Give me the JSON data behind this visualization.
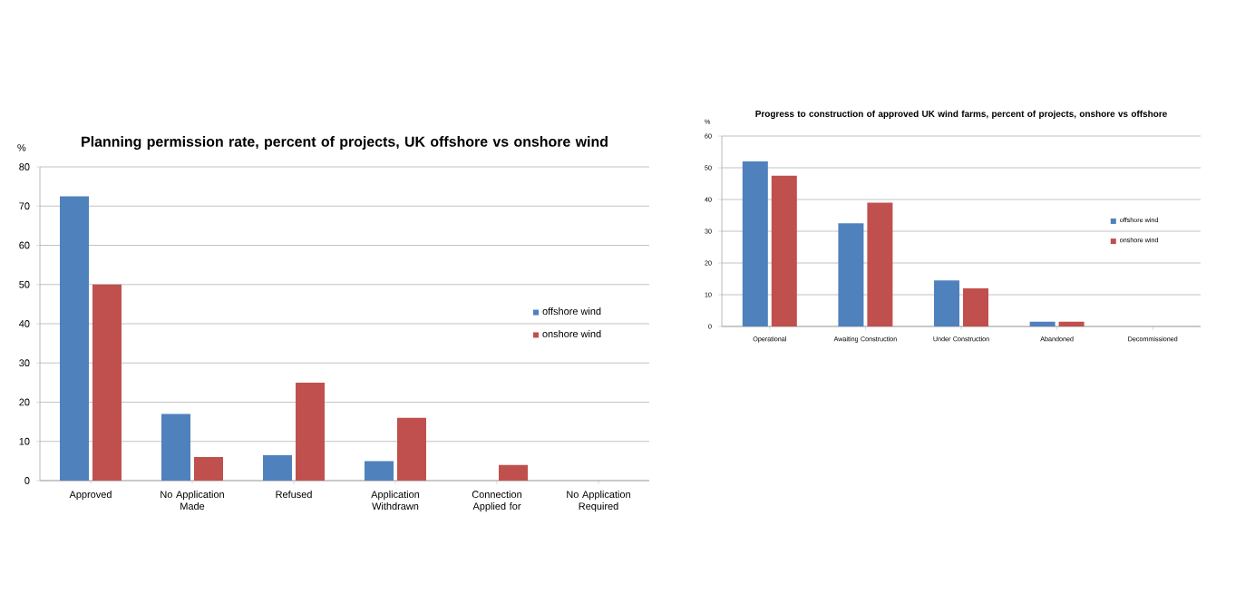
{
  "chart_data": [
    {
      "type": "bar",
      "title": "Planning permission rate, percent of projects, UK offshore vs onshore wind",
      "ylabel": "%",
      "categories": [
        "Approved",
        "No Application Made",
        "Refused",
        "Application Withdrawn",
        "Connection Applied for",
        "No Application Required"
      ],
      "series": [
        {
          "name": "offshore wind",
          "color": "#4f81bd",
          "values": [
            72.5,
            17,
            6.5,
            5,
            0,
            0
          ]
        },
        {
          "name": "onshore wind",
          "color": "#c0504d",
          "values": [
            50,
            6,
            25,
            16,
            4,
            0
          ]
        }
      ],
      "ylim": [
        0,
        80
      ],
      "yticks": [
        0,
        10,
        20,
        30,
        40,
        50,
        60,
        70,
        80
      ],
      "grid": "y",
      "legend": "right"
    },
    {
      "type": "bar",
      "title": "Progress to construction of approved UK wind farms, percent of projects, onshore vs offshore",
      "ylabel": "%",
      "categories": [
        "Operational",
        "Awaiting Construction",
        "Under Construction",
        "Abandoned",
        "Decommissioned"
      ],
      "series": [
        {
          "name": "offshore wind",
          "color": "#4f81bd",
          "values": [
            52,
            32.5,
            14.5,
            1.5,
            0
          ]
        },
        {
          "name": "onshore wind",
          "color": "#c0504d",
          "values": [
            47.5,
            39,
            12,
            1.5,
            0
          ]
        }
      ],
      "ylim": [
        0,
        60
      ],
      "yticks": [
        0,
        10,
        20,
        30,
        40,
        50,
        60
      ],
      "grid": "y",
      "legend": "right"
    }
  ]
}
